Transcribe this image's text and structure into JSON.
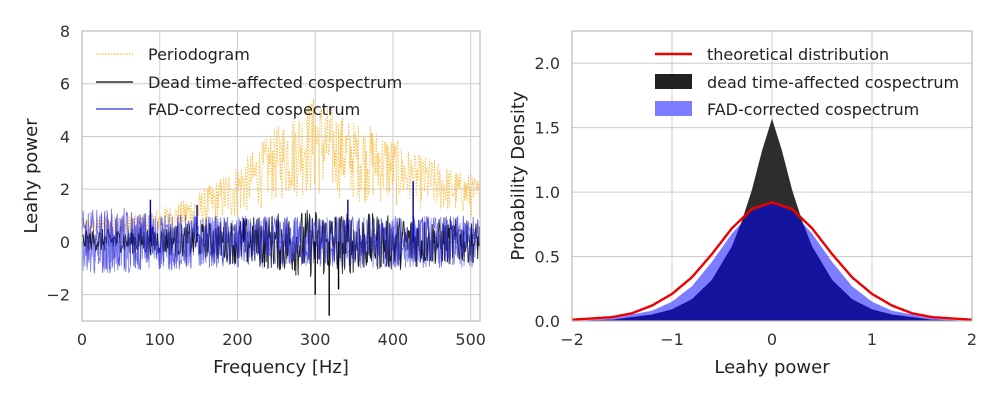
{
  "chart_data": [
    {
      "type": "line",
      "xlabel": "Frequency [Hz]",
      "ylabel": "Leahy power",
      "xlim": [
        0,
        512
      ],
      "ylim": [
        -3,
        8
      ],
      "xticks": [
        0,
        100,
        200,
        300,
        400,
        500
      ],
      "yticks": [
        -2,
        0,
        2,
        4,
        6,
        8
      ],
      "xtick_labels": [
        "0",
        "100",
        "200",
        "300",
        "400",
        "500"
      ],
      "ytick_labels": [
        "−2",
        "0",
        "2",
        "4",
        "6",
        "8"
      ],
      "grid": true,
      "legend_position": "upper-left",
      "series": [
        {
          "name": "Periodogram",
          "color": "#ffb732",
          "style": "dotted",
          "x": [
            0,
            25,
            50,
            75,
            100,
            125,
            150,
            175,
            200,
            225,
            250,
            275,
            300,
            325,
            350,
            375,
            400,
            425,
            450,
            475,
            500,
            512
          ],
          "y_low": [
            0.0,
            0.1,
            0.1,
            0.1,
            0.2,
            0.3,
            0.4,
            0.6,
            0.8,
            1.2,
            1.4,
            1.6,
            1.6,
            1.6,
            1.5,
            1.4,
            1.3,
            1.2,
            1.1,
            1.0,
            0.9,
            0.9
          ],
          "y_high": [
            0.9,
            1.0,
            1.0,
            1.1,
            1.3,
            1.5,
            1.9,
            2.4,
            3.0,
            3.6,
            4.4,
            5.0,
            5.6,
            5.0,
            4.6,
            4.4,
            4.0,
            3.4,
            3.2,
            2.8,
            2.6,
            2.4
          ]
        },
        {
          "name": "Dead time-affected cospectrum",
          "color": "#000000",
          "style": "solid",
          "x": [
            0,
            25,
            50,
            75,
            100,
            125,
            150,
            175,
            200,
            225,
            250,
            275,
            300,
            325,
            350,
            375,
            400,
            425,
            450,
            475,
            500,
            512
          ],
          "y_low": [
            -0.3,
            -0.4,
            -0.4,
            -0.5,
            -0.5,
            -0.6,
            -0.6,
            -0.7,
            -0.9,
            -1.0,
            -1.1,
            -1.3,
            -1.4,
            -1.3,
            -1.2,
            -1.1,
            -1.1,
            -1.0,
            -0.9,
            -0.9,
            -0.8,
            -0.8
          ],
          "y_high": [
            0.4,
            0.5,
            0.5,
            0.6,
            0.6,
            0.7,
            0.7,
            0.8,
            0.9,
            1.0,
            1.1,
            1.2,
            1.3,
            1.2,
            1.1,
            1.1,
            1.0,
            1.0,
            0.9,
            0.9,
            0.8,
            0.8
          ]
        },
        {
          "name": "FAD-corrected cospectrum",
          "color": "#3333dd",
          "style": "solid",
          "x": [
            0,
            25,
            50,
            75,
            100,
            125,
            150,
            175,
            200,
            225,
            250,
            275,
            300,
            325,
            350,
            375,
            400,
            425,
            450,
            475,
            500,
            512
          ],
          "y_low": [
            -1.2,
            -1.2,
            -1.2,
            -1.1,
            -1.1,
            -1.1,
            -1.0,
            -1.0,
            -1.0,
            -1.0,
            -1.0,
            -1.0,
            -1.0,
            -1.0,
            -1.0,
            -1.0,
            -1.0,
            -1.0,
            -1.0,
            -1.0,
            -1.0,
            -1.0
          ],
          "y_high": [
            1.2,
            1.3,
            1.3,
            1.2,
            1.1,
            1.1,
            1.0,
            1.0,
            1.0,
            1.0,
            1.0,
            1.0,
            1.0,
            1.0,
            1.0,
            1.0,
            1.0,
            1.0,
            1.0,
            1.0,
            1.0,
            1.0
          ]
        }
      ],
      "spikes": [
        {
          "x": 88,
          "y": 1.6
        },
        {
          "x": 148,
          "y": 1.4
        },
        {
          "x": 208,
          "y": 0.9
        },
        {
          "x": 300,
          "y": -2.0
        },
        {
          "x": 318,
          "y": -2.8
        },
        {
          "x": 330,
          "y": -1.8
        },
        {
          "x": 342,
          "y": 1.6
        },
        {
          "x": 426,
          "y": 2.3
        }
      ]
    },
    {
      "type": "area",
      "xlabel": "Leahy power",
      "ylabel": "Probability Density",
      "xlim": [
        -2,
        2
      ],
      "ylim": [
        0,
        2.25
      ],
      "xticks": [
        -2,
        -1,
        0,
        1,
        2
      ],
      "yticks": [
        0.0,
        0.5,
        1.0,
        1.5,
        2.0
      ],
      "xtick_labels": [
        "−2",
        "−1",
        "0",
        "1",
        "2"
      ],
      "ytick_labels": [
        "0.0",
        "0.5",
        "1.0",
        "1.5",
        "2.0"
      ],
      "grid": true,
      "legend_position": "upper-center",
      "series": [
        {
          "name": "theoretical distribution",
          "type": "line",
          "color": "#ee0000",
          "x": [
            -2.0,
            -1.8,
            -1.6,
            -1.4,
            -1.2,
            -1.0,
            -0.8,
            -0.6,
            -0.4,
            -0.2,
            0.0,
            0.2,
            0.4,
            0.6,
            0.8,
            1.0,
            1.2,
            1.4,
            1.6,
            1.8,
            2.0
          ],
          "y": [
            0.01,
            0.02,
            0.03,
            0.06,
            0.12,
            0.21,
            0.34,
            0.52,
            0.72,
            0.87,
            0.92,
            0.87,
            0.72,
            0.52,
            0.34,
            0.21,
            0.12,
            0.06,
            0.03,
            0.02,
            0.01
          ]
        },
        {
          "name": "dead time-affected cospectrum",
          "type": "area",
          "color": "#222222",
          "x": [
            -2.0,
            -1.6,
            -1.2,
            -1.0,
            -0.8,
            -0.6,
            -0.4,
            -0.3,
            -0.2,
            -0.1,
            0.0,
            0.1,
            0.2,
            0.3,
            0.4,
            0.6,
            0.8,
            1.0,
            1.2,
            1.6,
            2.0
          ],
          "y": [
            0.0,
            0.01,
            0.05,
            0.09,
            0.17,
            0.32,
            0.58,
            0.78,
            1.02,
            1.32,
            1.57,
            1.32,
            1.02,
            0.78,
            0.58,
            0.32,
            0.17,
            0.09,
            0.05,
            0.01,
            0.0
          ]
        },
        {
          "name": "FAD-corrected cospectrum",
          "type": "area",
          "color": "#6666ff",
          "x": [
            -2.0,
            -1.6,
            -1.2,
            -1.0,
            -0.8,
            -0.6,
            -0.4,
            -0.2,
            0.0,
            0.2,
            0.4,
            0.6,
            0.8,
            1.0,
            1.2,
            1.6,
            2.0
          ],
          "y": [
            0.0,
            0.02,
            0.08,
            0.15,
            0.27,
            0.46,
            0.68,
            0.85,
            0.92,
            0.85,
            0.68,
            0.46,
            0.27,
            0.15,
            0.08,
            0.02,
            0.0
          ]
        }
      ]
    }
  ]
}
